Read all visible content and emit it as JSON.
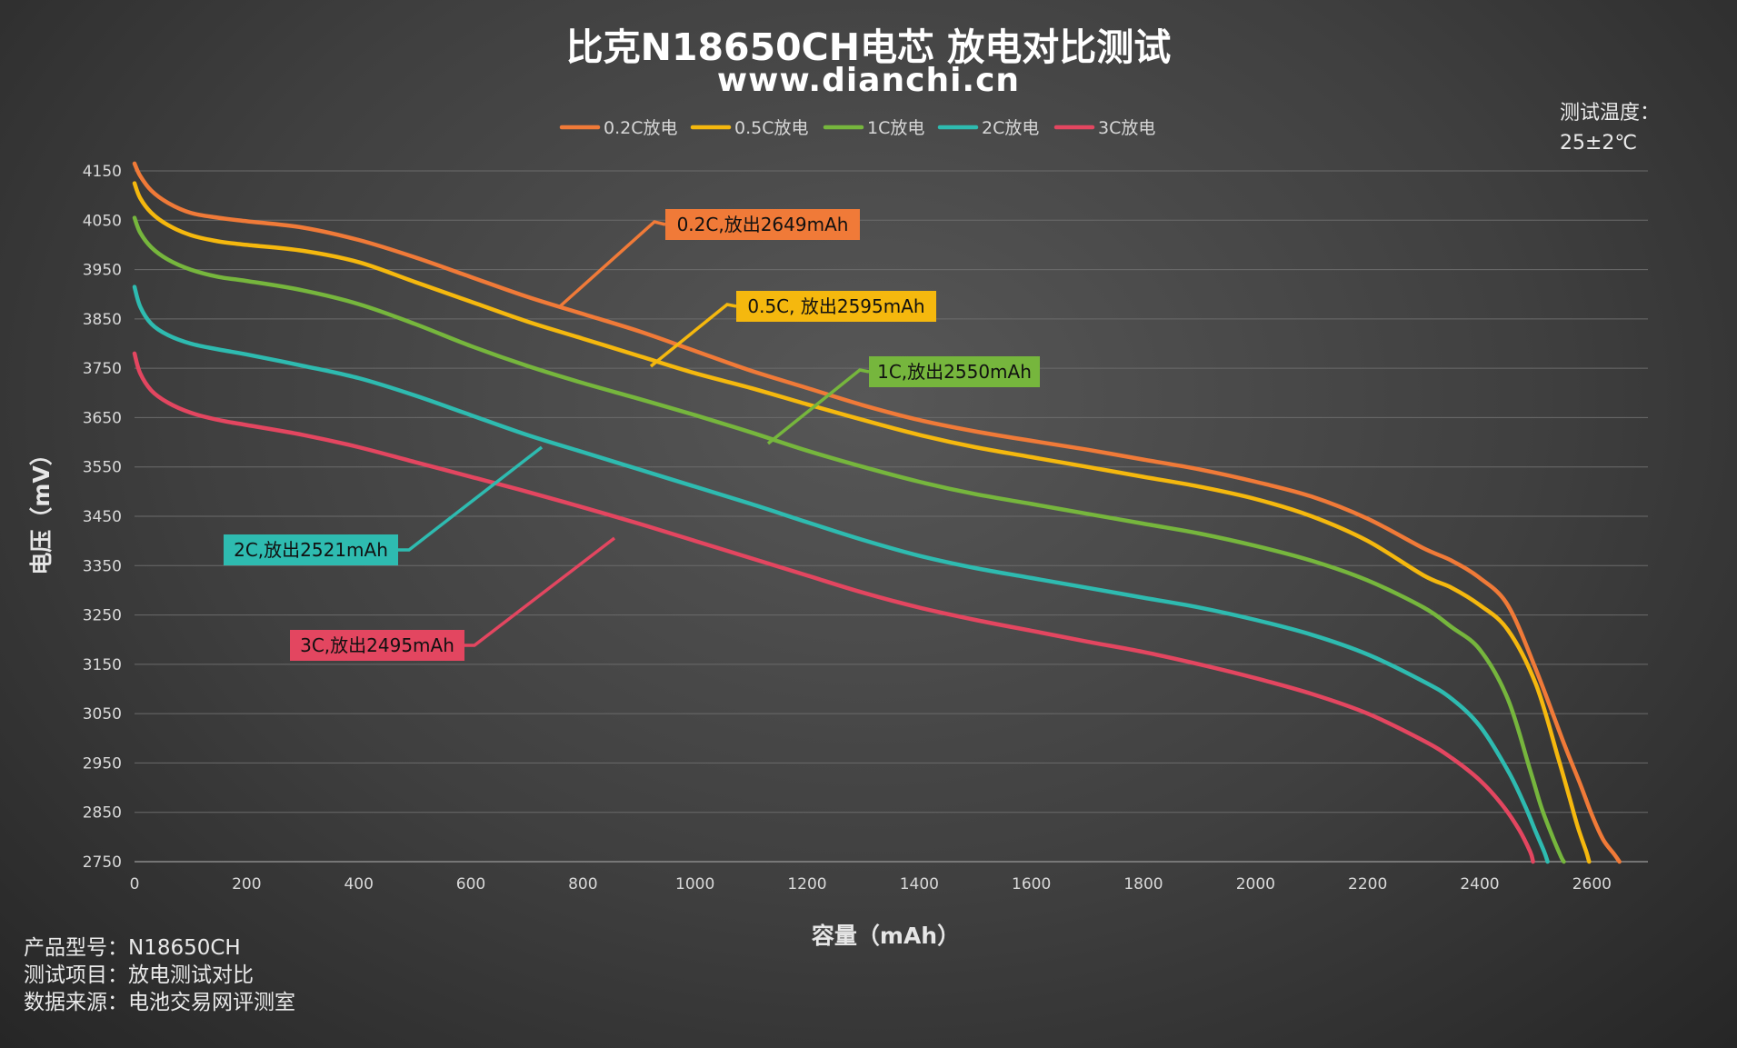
{
  "title": "比克N18650CH电芯 放电对比测试",
  "subtitle": "www.dianchi.cn",
  "temperature": {
    "label": "测试温度：",
    "value": "25±2℃"
  },
  "footer": [
    {
      "label": "产品型号：",
      "value": "N18650CH"
    },
    {
      "label": "测试项目：",
      "value": "放电测试对比"
    },
    {
      "label": "数据来源：",
      "value": "电池交易网评测室"
    }
  ],
  "colors": {
    "0.2C": "#f07a38",
    "0.5C": "#f5b80e",
    "1C": "#76b63d",
    "2C": "#2ebbb0",
    "3C": "#e34660"
  },
  "chart_data": {
    "type": "line",
    "xlabel": "容量（mAh）",
    "ylabel": "电压（mV）",
    "xlim": [
      0,
      2700
    ],
    "ylim": [
      2750,
      4150
    ],
    "x_ticks": [
      0,
      200,
      400,
      600,
      800,
      1000,
      1200,
      1400,
      1600,
      1800,
      2000,
      2200,
      2400,
      2600
    ],
    "y_ticks": [
      4150,
      4050,
      3950,
      3850,
      3750,
      3650,
      3550,
      3450,
      3350,
      3250,
      3150,
      3050,
      2950,
      2850,
      2750
    ],
    "grid": "horizontal",
    "legend_position": "top-center",
    "series": [
      {
        "name": "0.2C放电",
        "key": "0.2C",
        "callout": "0.2C,放出2649mAh",
        "x": [
          0,
          10,
          30,
          60,
          100,
          150,
          200,
          300,
          400,
          500,
          600,
          700,
          800,
          900,
          1000,
          1100,
          1200,
          1300,
          1400,
          1500,
          1600,
          1700,
          1800,
          1900,
          2000,
          2100,
          2200,
          2300,
          2350,
          2400,
          2450,
          2500,
          2550,
          2580,
          2600,
          2620,
          2640,
          2649
        ],
        "y": [
          4165,
          4140,
          4110,
          4085,
          4065,
          4055,
          4048,
          4035,
          4010,
          3975,
          3935,
          3895,
          3860,
          3825,
          3785,
          3745,
          3710,
          3675,
          3645,
          3622,
          3603,
          3585,
          3565,
          3545,
          3520,
          3490,
          3445,
          3385,
          3360,
          3325,
          3270,
          3140,
          2990,
          2905,
          2845,
          2795,
          2765,
          2750
        ]
      },
      {
        "name": "0.5C放电",
        "key": "0.5C",
        "callout": "0.5C, 放出2595mAh",
        "x": [
          0,
          10,
          30,
          60,
          100,
          150,
          200,
          300,
          400,
          500,
          600,
          700,
          800,
          900,
          1000,
          1100,
          1200,
          1300,
          1400,
          1500,
          1600,
          1700,
          1800,
          1900,
          2000,
          2100,
          2200,
          2300,
          2350,
          2400,
          2450,
          2500,
          2540,
          2560,
          2575,
          2590,
          2595
        ],
        "y": [
          4125,
          4095,
          4065,
          4040,
          4020,
          4007,
          4000,
          3988,
          3965,
          3925,
          3885,
          3845,
          3810,
          3775,
          3740,
          3710,
          3677,
          3645,
          3615,
          3590,
          3570,
          3550,
          3530,
          3510,
          3485,
          3450,
          3400,
          3330,
          3305,
          3270,
          3220,
          3110,
          2960,
          2880,
          2820,
          2770,
          2750
        ]
      },
      {
        "name": "1C放电",
        "key": "1C",
        "callout": "1C,放出2550mAh",
        "x": [
          0,
          10,
          30,
          60,
          100,
          150,
          200,
          300,
          400,
          500,
          600,
          700,
          800,
          900,
          1000,
          1100,
          1200,
          1300,
          1400,
          1500,
          1600,
          1700,
          1800,
          1900,
          2000,
          2100,
          2200,
          2300,
          2350,
          2400,
          2450,
          2490,
          2510,
          2530,
          2545,
          2550
        ],
        "y": [
          4055,
          4025,
          3995,
          3970,
          3950,
          3935,
          3927,
          3908,
          3880,
          3840,
          3795,
          3755,
          3720,
          3688,
          3655,
          3620,
          3583,
          3550,
          3520,
          3495,
          3475,
          3455,
          3435,
          3415,
          3390,
          3360,
          3320,
          3265,
          3225,
          3180,
          3080,
          2935,
          2860,
          2800,
          2760,
          2750
        ]
      },
      {
        "name": "2C放电",
        "key": "2C",
        "callout": "2C,放出2521mAh",
        "x": [
          0,
          10,
          30,
          60,
          100,
          150,
          200,
          300,
          400,
          500,
          600,
          700,
          800,
          900,
          1000,
          1100,
          1200,
          1300,
          1400,
          1500,
          1600,
          1700,
          1800,
          1900,
          2000,
          2100,
          2200,
          2300,
          2350,
          2400,
          2450,
          2480,
          2500,
          2515,
          2521
        ],
        "y": [
          3915,
          3875,
          3840,
          3817,
          3800,
          3788,
          3778,
          3755,
          3730,
          3695,
          3655,
          3615,
          3580,
          3545,
          3510,
          3475,
          3438,
          3402,
          3370,
          3345,
          3325,
          3305,
          3285,
          3265,
          3240,
          3210,
          3170,
          3115,
          3080,
          3025,
          2935,
          2865,
          2810,
          2770,
          2750
        ]
      },
      {
        "name": "3C放电",
        "key": "3C",
        "callout": "3C,放出2495mAh",
        "x": [
          0,
          10,
          30,
          60,
          100,
          150,
          200,
          300,
          400,
          500,
          600,
          700,
          800,
          900,
          1000,
          1100,
          1200,
          1300,
          1400,
          1500,
          1600,
          1700,
          1800,
          1900,
          2000,
          2100,
          2200,
          2300,
          2350,
          2400,
          2440,
          2470,
          2490,
          2495
        ],
        "y": [
          3780,
          3740,
          3705,
          3680,
          3660,
          3645,
          3635,
          3615,
          3590,
          3560,
          3530,
          3500,
          3468,
          3435,
          3400,
          3365,
          3330,
          3295,
          3265,
          3240,
          3218,
          3196,
          3175,
          3150,
          3122,
          3090,
          3050,
          2995,
          2960,
          2915,
          2865,
          2815,
          2770,
          2750
        ]
      }
    ]
  }
}
